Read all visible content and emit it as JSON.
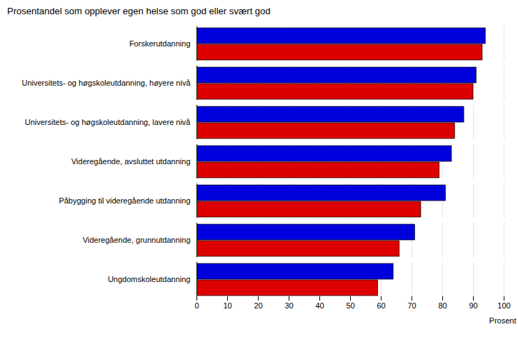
{
  "chart_data": {
    "type": "bar",
    "orientation": "horizontal",
    "title": "Prosentandel som opplever egen helse som god eller svært god",
    "xlabel": "Prosent",
    "categories": [
      "Ungdomskoleutdanning",
      "Videregående, grunnutdanning",
      "Påbygging til videregående utdanning",
      "Videregående, avsluttet utdanning",
      "Universitets- og høgskoleutdanning, lavere nivå",
      "Universitets- og høgskoleutdanning, høyere nivå",
      "Forskerutdanning"
    ],
    "series": [
      {
        "color": "#0000dd",
        "values": [
          64,
          71,
          81,
          83,
          87,
          91,
          94
        ]
      },
      {
        "color": "#dd0000",
        "values": [
          59,
          66,
          73,
          79,
          84,
          90,
          93
        ]
      }
    ],
    "xlim": [
      0,
      100
    ],
    "xticks": [
      0,
      10,
      20,
      30,
      40,
      50,
      60,
      70,
      80,
      90,
      100
    ],
    "grid": true
  }
}
